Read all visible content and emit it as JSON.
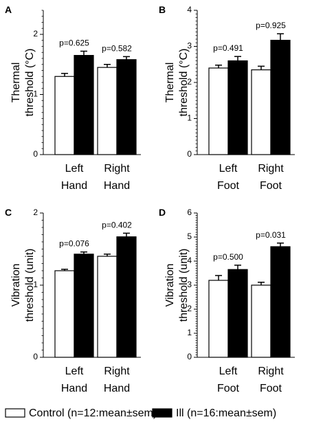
{
  "chart_data": [
    {
      "panel": "A",
      "type": "bar",
      "ylabel": [
        "Thermal",
        "threshold (°C)"
      ],
      "ylim": [
        0,
        2.4
      ],
      "yticks": [
        0,
        1,
        2
      ],
      "categories": [
        [
          "Left",
          "Hand"
        ],
        [
          "Right",
          "Hand"
        ]
      ],
      "series": [
        {
          "key": "control",
          "values": [
            1.3,
            1.45
          ],
          "errors": [
            0.05,
            0.05
          ]
        },
        {
          "key": "ill",
          "values": [
            1.65,
            1.58
          ],
          "errors": [
            0.07,
            0.05
          ]
        }
      ],
      "pvalues": [
        "p=0.625",
        "p=0.582"
      ]
    },
    {
      "panel": "B",
      "type": "bar",
      "ylabel": [
        "Thermal",
        "threshold (°C)"
      ],
      "ylim": [
        0,
        4
      ],
      "yticks": [
        0,
        1,
        2,
        3,
        4
      ],
      "categories": [
        [
          "Left",
          "Foot"
        ],
        [
          "Right",
          "Foot"
        ]
      ],
      "series": [
        {
          "key": "control",
          "values": [
            2.4,
            2.35
          ],
          "errors": [
            0.08,
            0.1
          ]
        },
        {
          "key": "ill",
          "values": [
            2.6,
            3.17
          ],
          "errors": [
            0.12,
            0.18
          ]
        }
      ],
      "pvalues": [
        "p=0.491",
        "p=0.925"
      ]
    },
    {
      "panel": "C",
      "type": "bar",
      "ylabel": [
        "Vibration",
        "threshold (unit)"
      ],
      "ylim": [
        0,
        2
      ],
      "yticks": [
        0,
        1,
        2
      ],
      "categories": [
        [
          "Left",
          "Hand"
        ],
        [
          "Right",
          "Hand"
        ]
      ],
      "series": [
        {
          "key": "control",
          "values": [
            1.2,
            1.4
          ],
          "errors": [
            0.02,
            0.03
          ]
        },
        {
          "key": "ill",
          "values": [
            1.43,
            1.67
          ],
          "errors": [
            0.03,
            0.05
          ]
        }
      ],
      "pvalues": [
        "p=0.076",
        "p=0.402"
      ]
    },
    {
      "panel": "D",
      "type": "bar",
      "ylabel": [
        "Vibration",
        "threshold (unit)"
      ],
      "ylim": [
        0,
        6
      ],
      "yticks": [
        0,
        1,
        2,
        3,
        4,
        5,
        6
      ],
      "categories": [
        [
          "Left",
          "Foot"
        ],
        [
          "Right",
          "Foot"
        ]
      ],
      "series": [
        {
          "key": "control",
          "values": [
            3.2,
            3.0
          ],
          "errors": [
            0.2,
            0.12
          ]
        },
        {
          "key": "ill",
          "values": [
            3.65,
            4.6
          ],
          "errors": [
            0.18,
            0.15
          ]
        }
      ],
      "pvalues": [
        "p=0.500",
        "p=0.031"
      ]
    }
  ],
  "legend": {
    "items": [
      {
        "key": "control",
        "label": "Control (n=12:mean±sem)",
        "color": "#ffffff"
      },
      {
        "key": "ill",
        "label": "Ill (n=16:mean±sem)",
        "color": "#000000"
      }
    ]
  }
}
